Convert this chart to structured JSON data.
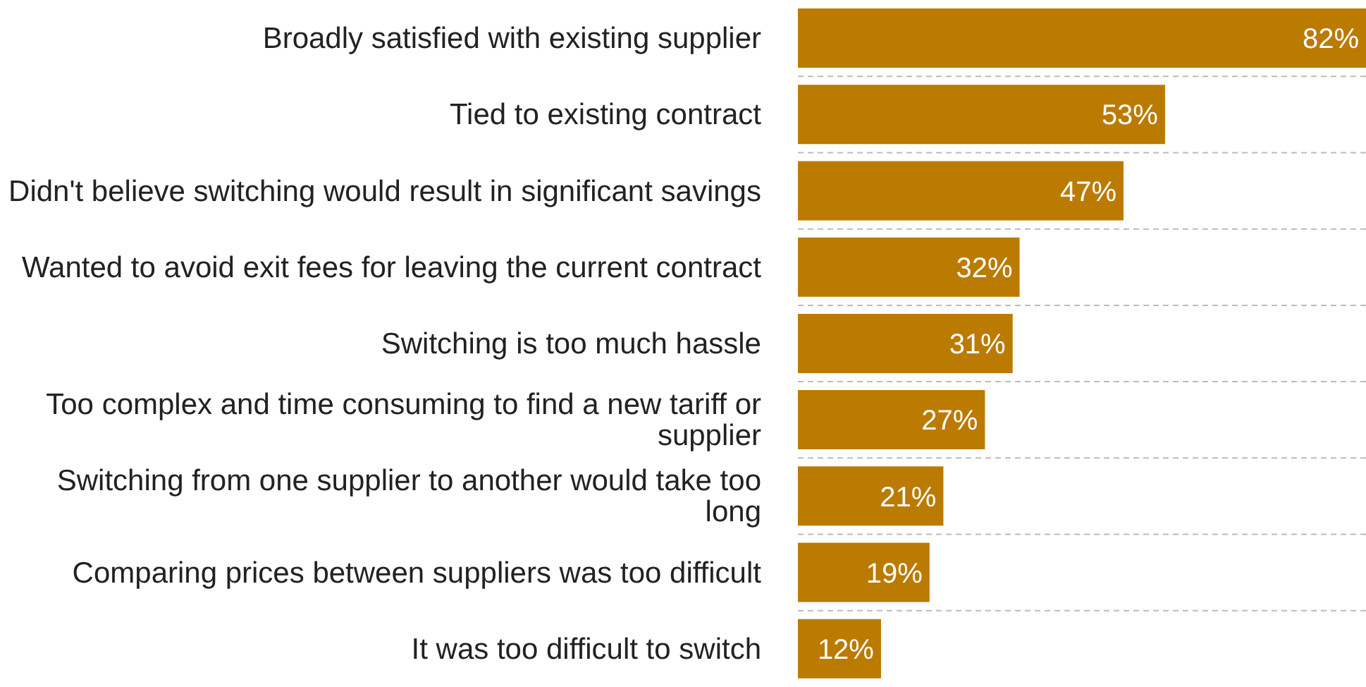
{
  "chart_data": {
    "type": "bar",
    "orientation": "horizontal",
    "categories": [
      "Broadly satisfied with existing supplier",
      "Tied to existing contract",
      "Didn't believe switching would result in significant savings",
      "Wanted to avoid exit fees for leaving the current contract",
      "Switching is too much hassle",
      "Too complex and time consuming to find a new tariff or supplier",
      "Switching from one supplier to another would take too long",
      "Comparing prices between suppliers was too difficult",
      "It was too difficult to switch"
    ],
    "values": [
      82,
      53,
      47,
      32,
      31,
      27,
      21,
      19,
      12
    ],
    "value_labels": [
      "82%",
      "53%",
      "47%",
      "32%",
      "31%",
      "27%",
      "21%",
      "19%",
      "12%"
    ],
    "color": "#bb7a00",
    "grid": "y",
    "tick_labels": "y"
  }
}
